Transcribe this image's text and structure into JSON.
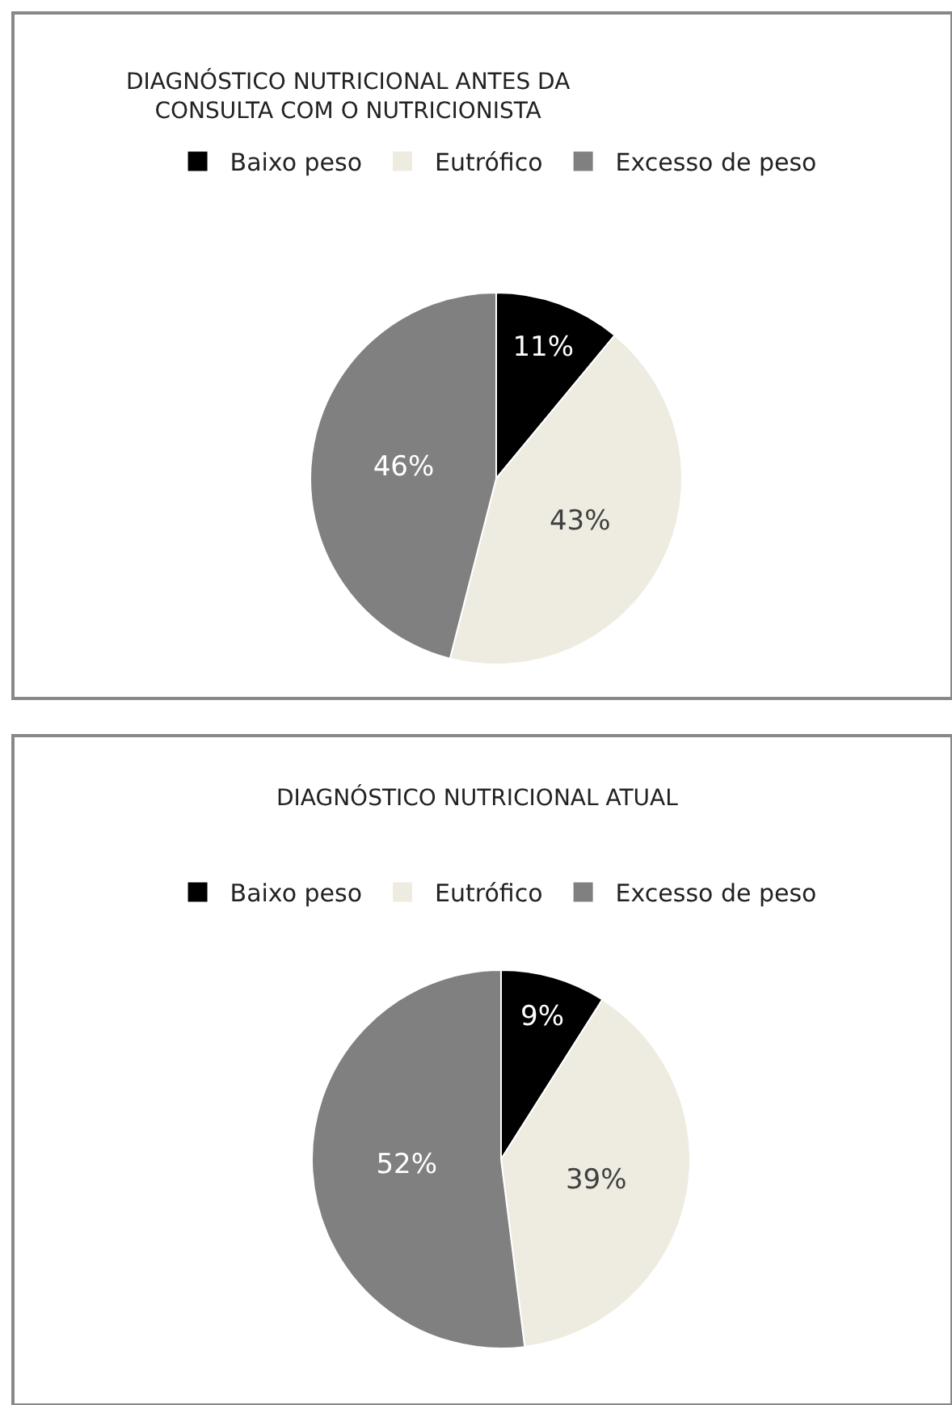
{
  "chart_data": [
    {
      "type": "pie",
      "title": "DIAGNÓSTICO NUTRICIONAL ANTES DA\nCONSULTA COM O NUTRICIONISTA",
      "categories": [
        "Baixo peso",
        "Eutrófico",
        "Excesso de peso"
      ],
      "values": [
        11,
        43,
        46
      ],
      "colors": [
        "#000000",
        "#eeece1",
        "#808080"
      ],
      "value_labels": [
        "11%",
        "43%",
        "46%"
      ],
      "legend": "top"
    },
    {
      "type": "pie",
      "title": "DIAGNÓSTICO NUTRICIONAL ATUAL",
      "categories": [
        "Baixo peso",
        "Eutrófico",
        "Excesso de peso"
      ],
      "values": [
        9,
        39,
        52
      ],
      "colors": [
        "#000000",
        "#eeece1",
        "#808080"
      ],
      "value_labels": [
        "9%",
        "39%",
        "52%"
      ],
      "legend": "top"
    }
  ]
}
